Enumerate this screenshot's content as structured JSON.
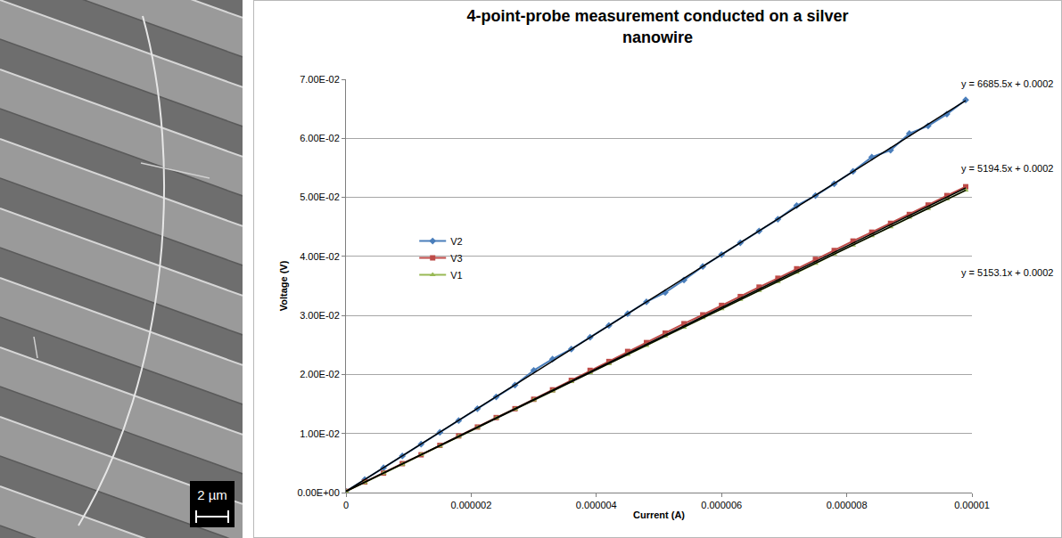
{
  "image_panel": {
    "scale_bar_label": "2 µm"
  },
  "chart_data": {
    "type": "line",
    "title": "4-point-probe measurement conducted on a silver nanowire",
    "x_label": "Current (A)",
    "y_label": "Voltage (V)",
    "x": [
      0,
      3e-07,
      6e-07,
      9e-07,
      1.2e-06,
      1.5e-06,
      1.8e-06,
      2.1e-06,
      2.4e-06,
      2.7e-06,
      3e-06,
      3.3e-06,
      3.6e-06,
      3.9e-06,
      4.2e-06,
      4.5e-06,
      4.8e-06,
      5.1e-06,
      5.4e-06,
      5.7e-06,
      6e-06,
      6.3e-06,
      6.6e-06,
      6.9e-06,
      7.2e-06,
      7.5e-06,
      7.8e-06,
      8.1e-06,
      8.4e-06,
      8.7e-06,
      9e-06,
      9.3e-06,
      9.6e-06,
      9.9e-06
    ],
    "series": [
      {
        "name": "V2",
        "color": "#4a7ebb",
        "marker": "diamond",
        "line_style": "solid",
        "values": [
          0.0002,
          0.0022,
          0.0042,
          0.0062,
          0.0082,
          0.0102,
          0.0122,
          0.0142,
          0.0162,
          0.0182,
          0.0207,
          0.0226,
          0.0243,
          0.0263,
          0.0283,
          0.0303,
          0.0323,
          0.0339,
          0.036,
          0.0383,
          0.0403,
          0.0423,
          0.0443,
          0.0463,
          0.0486,
          0.0503,
          0.0523,
          0.0544,
          0.0568,
          0.058,
          0.0608,
          0.0621,
          0.0641,
          0.0665
        ]
      },
      {
        "name": "V3",
        "color": "#be4b48",
        "marker": "square",
        "line_style": "solid",
        "values": [
          0.0002,
          0.0018,
          0.0033,
          0.0049,
          0.0064,
          0.008,
          0.0096,
          0.0111,
          0.0127,
          0.0142,
          0.0158,
          0.0174,
          0.019,
          0.0207,
          0.0222,
          0.0239,
          0.0254,
          0.027,
          0.0286,
          0.0301,
          0.0317,
          0.0332,
          0.0348,
          0.0363,
          0.0379,
          0.0395,
          0.041,
          0.0426,
          0.0441,
          0.0456,
          0.0471,
          0.0487,
          0.0503,
          0.0518
        ]
      },
      {
        "name": "V1",
        "color": "#98b954",
        "marker": "triangle",
        "line_style": "solid",
        "values": [
          0.0002,
          0.0017,
          0.0033,
          0.0048,
          0.0064,
          0.0079,
          0.0095,
          0.011,
          0.0126,
          0.0141,
          0.0157,
          0.0172,
          0.0188,
          0.0203,
          0.0218,
          0.0234,
          0.0249,
          0.0265,
          0.028,
          0.0296,
          0.0311,
          0.0327,
          0.0342,
          0.0357,
          0.0373,
          0.0388,
          0.0404,
          0.0419,
          0.0435,
          0.045,
          0.0466,
          0.0481,
          0.0497,
          0.0512
        ]
      }
    ],
    "trendlines": [
      {
        "label": "y = 6685.5x + 0.0002",
        "color": "#000000",
        "line_style": "solid",
        "x": [
          0,
          9.9e-06
        ],
        "values": [
          0.0002,
          0.0664
        ]
      },
      {
        "label": "y = 5194.5x + 0.0002",
        "color": "#000000",
        "line_style": "solid",
        "x": [
          0,
          9.9e-06
        ],
        "values": [
          0.0002,
          0.0516
        ]
      },
      {
        "label": "y = 5153.1x + 0.0002",
        "color": "#000000",
        "line_style": "solid",
        "x": [
          0,
          9.9e-06
        ],
        "values": [
          0.0002,
          0.0512
        ]
      }
    ],
    "xlim": [
      0,
      1e-05
    ],
    "xticks": [
      0,
      2e-06,
      4e-06,
      6e-06,
      8e-06,
      1e-05
    ],
    "ylim": [
      0,
      0.07
    ],
    "yticks": [
      {
        "value": 0,
        "label": "0.00E+00"
      },
      {
        "value": 0.01,
        "label": "1.00E-02"
      },
      {
        "value": 0.02,
        "label": "2.00E-02"
      },
      {
        "value": 0.03,
        "label": "3.00E-02"
      },
      {
        "value": 0.04,
        "label": "4.00E-02"
      },
      {
        "value": 0.05,
        "label": "5.00E-02"
      },
      {
        "value": 0.06,
        "label": "6.00E-02"
      },
      {
        "value": 0.07,
        "label": "7.00E-02"
      }
    ],
    "grid": true,
    "legend": "left"
  }
}
